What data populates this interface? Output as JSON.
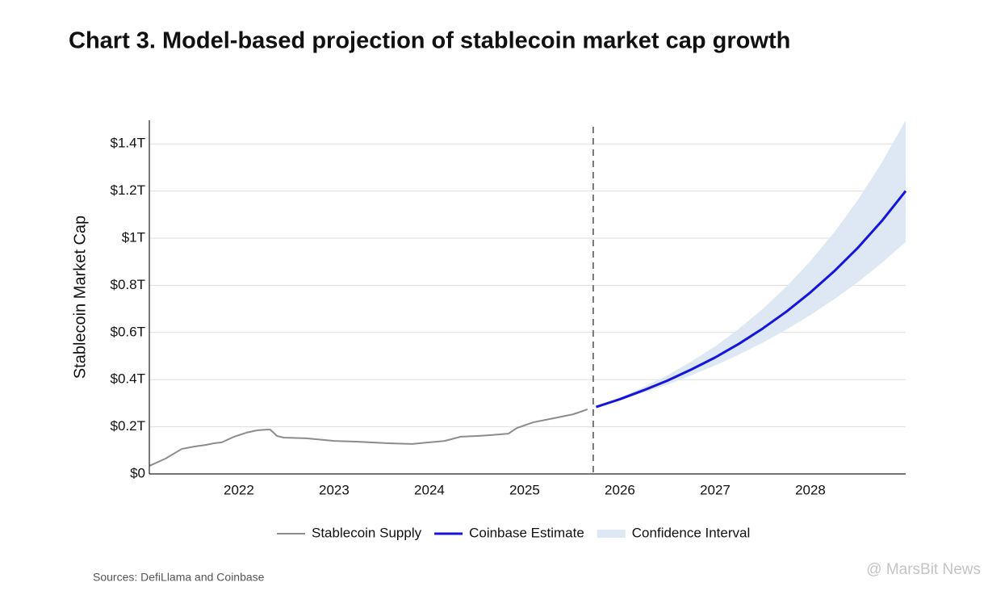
{
  "chart_data": {
    "type": "line",
    "title": "Chart 3. Model-based projection of stablecoin market cap growth",
    "y_label": "Stablecoin Market Cap",
    "source": "Sources: DefiLlama and Coinbase",
    "watermark": "@ MarsBit News",
    "xlim": [
      2021.06,
      2029.0
    ],
    "xticks": [
      2022,
      2023,
      2024,
      2025,
      2026,
      2027,
      2028
    ],
    "ylim": [
      0,
      1.5
    ],
    "yticks": [
      {
        "value": 0,
        "label": "$0"
      },
      {
        "value": 0.2,
        "label": "$0.2T"
      },
      {
        "value": 0.4,
        "label": "$0.4T"
      },
      {
        "value": 0.6,
        "label": "$0.6T"
      },
      {
        "value": 0.8,
        "label": "$0.8T"
      },
      {
        "value": 1,
        "label": "$1T"
      },
      {
        "value": 1.2,
        "label": "$1.2T"
      },
      {
        "value": 1.4,
        "label": "$1.4T"
      }
    ],
    "grid": true,
    "divider_x": 2025.72,
    "legend": "bottom",
    "series": [
      {
        "name": "Stablecoin Supply",
        "color": "#8c8c8c",
        "x": [
          2021.06,
          2021.23,
          2021.4,
          2021.53,
          2021.65,
          2021.74,
          2021.82,
          2021.95,
          2022.08,
          2022.19,
          2022.29,
          2022.33,
          2022.4,
          2022.47,
          2022.71,
          2023.0,
          2023.23,
          2023.57,
          2023.82,
          2024.0,
          2024.16,
          2024.33,
          2024.5,
          2024.62,
          2024.83,
          2024.92,
          2025.09,
          2025.3,
          2025.51,
          2025.66
        ],
        "values": [
          0.034,
          0.065,
          0.106,
          0.116,
          0.123,
          0.13,
          0.134,
          0.158,
          0.175,
          0.185,
          0.188,
          0.188,
          0.161,
          0.154,
          0.151,
          0.14,
          0.137,
          0.13,
          0.127,
          0.134,
          0.14,
          0.158,
          0.161,
          0.164,
          0.171,
          0.195,
          0.219,
          0.236,
          0.253,
          0.274
        ]
      },
      {
        "name": "Coinbase Estimate",
        "color": "#1414dc",
        "x": [
          2025.75,
          2026.0,
          2026.25,
          2026.5,
          2026.75,
          2027.0,
          2027.25,
          2027.5,
          2027.75,
          2028.0,
          2028.25,
          2028.5,
          2028.75,
          2029.0
        ],
        "values": [
          0.284,
          0.317,
          0.355,
          0.396,
          0.443,
          0.494,
          0.552,
          0.617,
          0.689,
          0.77,
          0.86,
          0.96,
          1.073,
          1.2
        ]
      },
      {
        "name": "Confidence Interval",
        "color": "#dde8f4",
        "x": [
          2025.75,
          2026.0,
          2026.25,
          2026.5,
          2026.75,
          2027.0,
          2027.25,
          2027.5,
          2027.75,
          2028.0,
          2028.25,
          2028.5,
          2028.75,
          2029.0
        ],
        "lower": [
          0.284,
          0.313,
          0.345,
          0.379,
          0.419,
          0.46,
          0.506,
          0.557,
          0.613,
          0.674,
          0.741,
          0.814,
          0.895,
          0.984
        ],
        "upper": [
          0.284,
          0.323,
          0.369,
          0.419,
          0.477,
          0.541,
          0.616,
          0.7,
          0.795,
          0.903,
          1.025,
          1.163,
          1.321,
          1.5
        ]
      }
    ]
  }
}
